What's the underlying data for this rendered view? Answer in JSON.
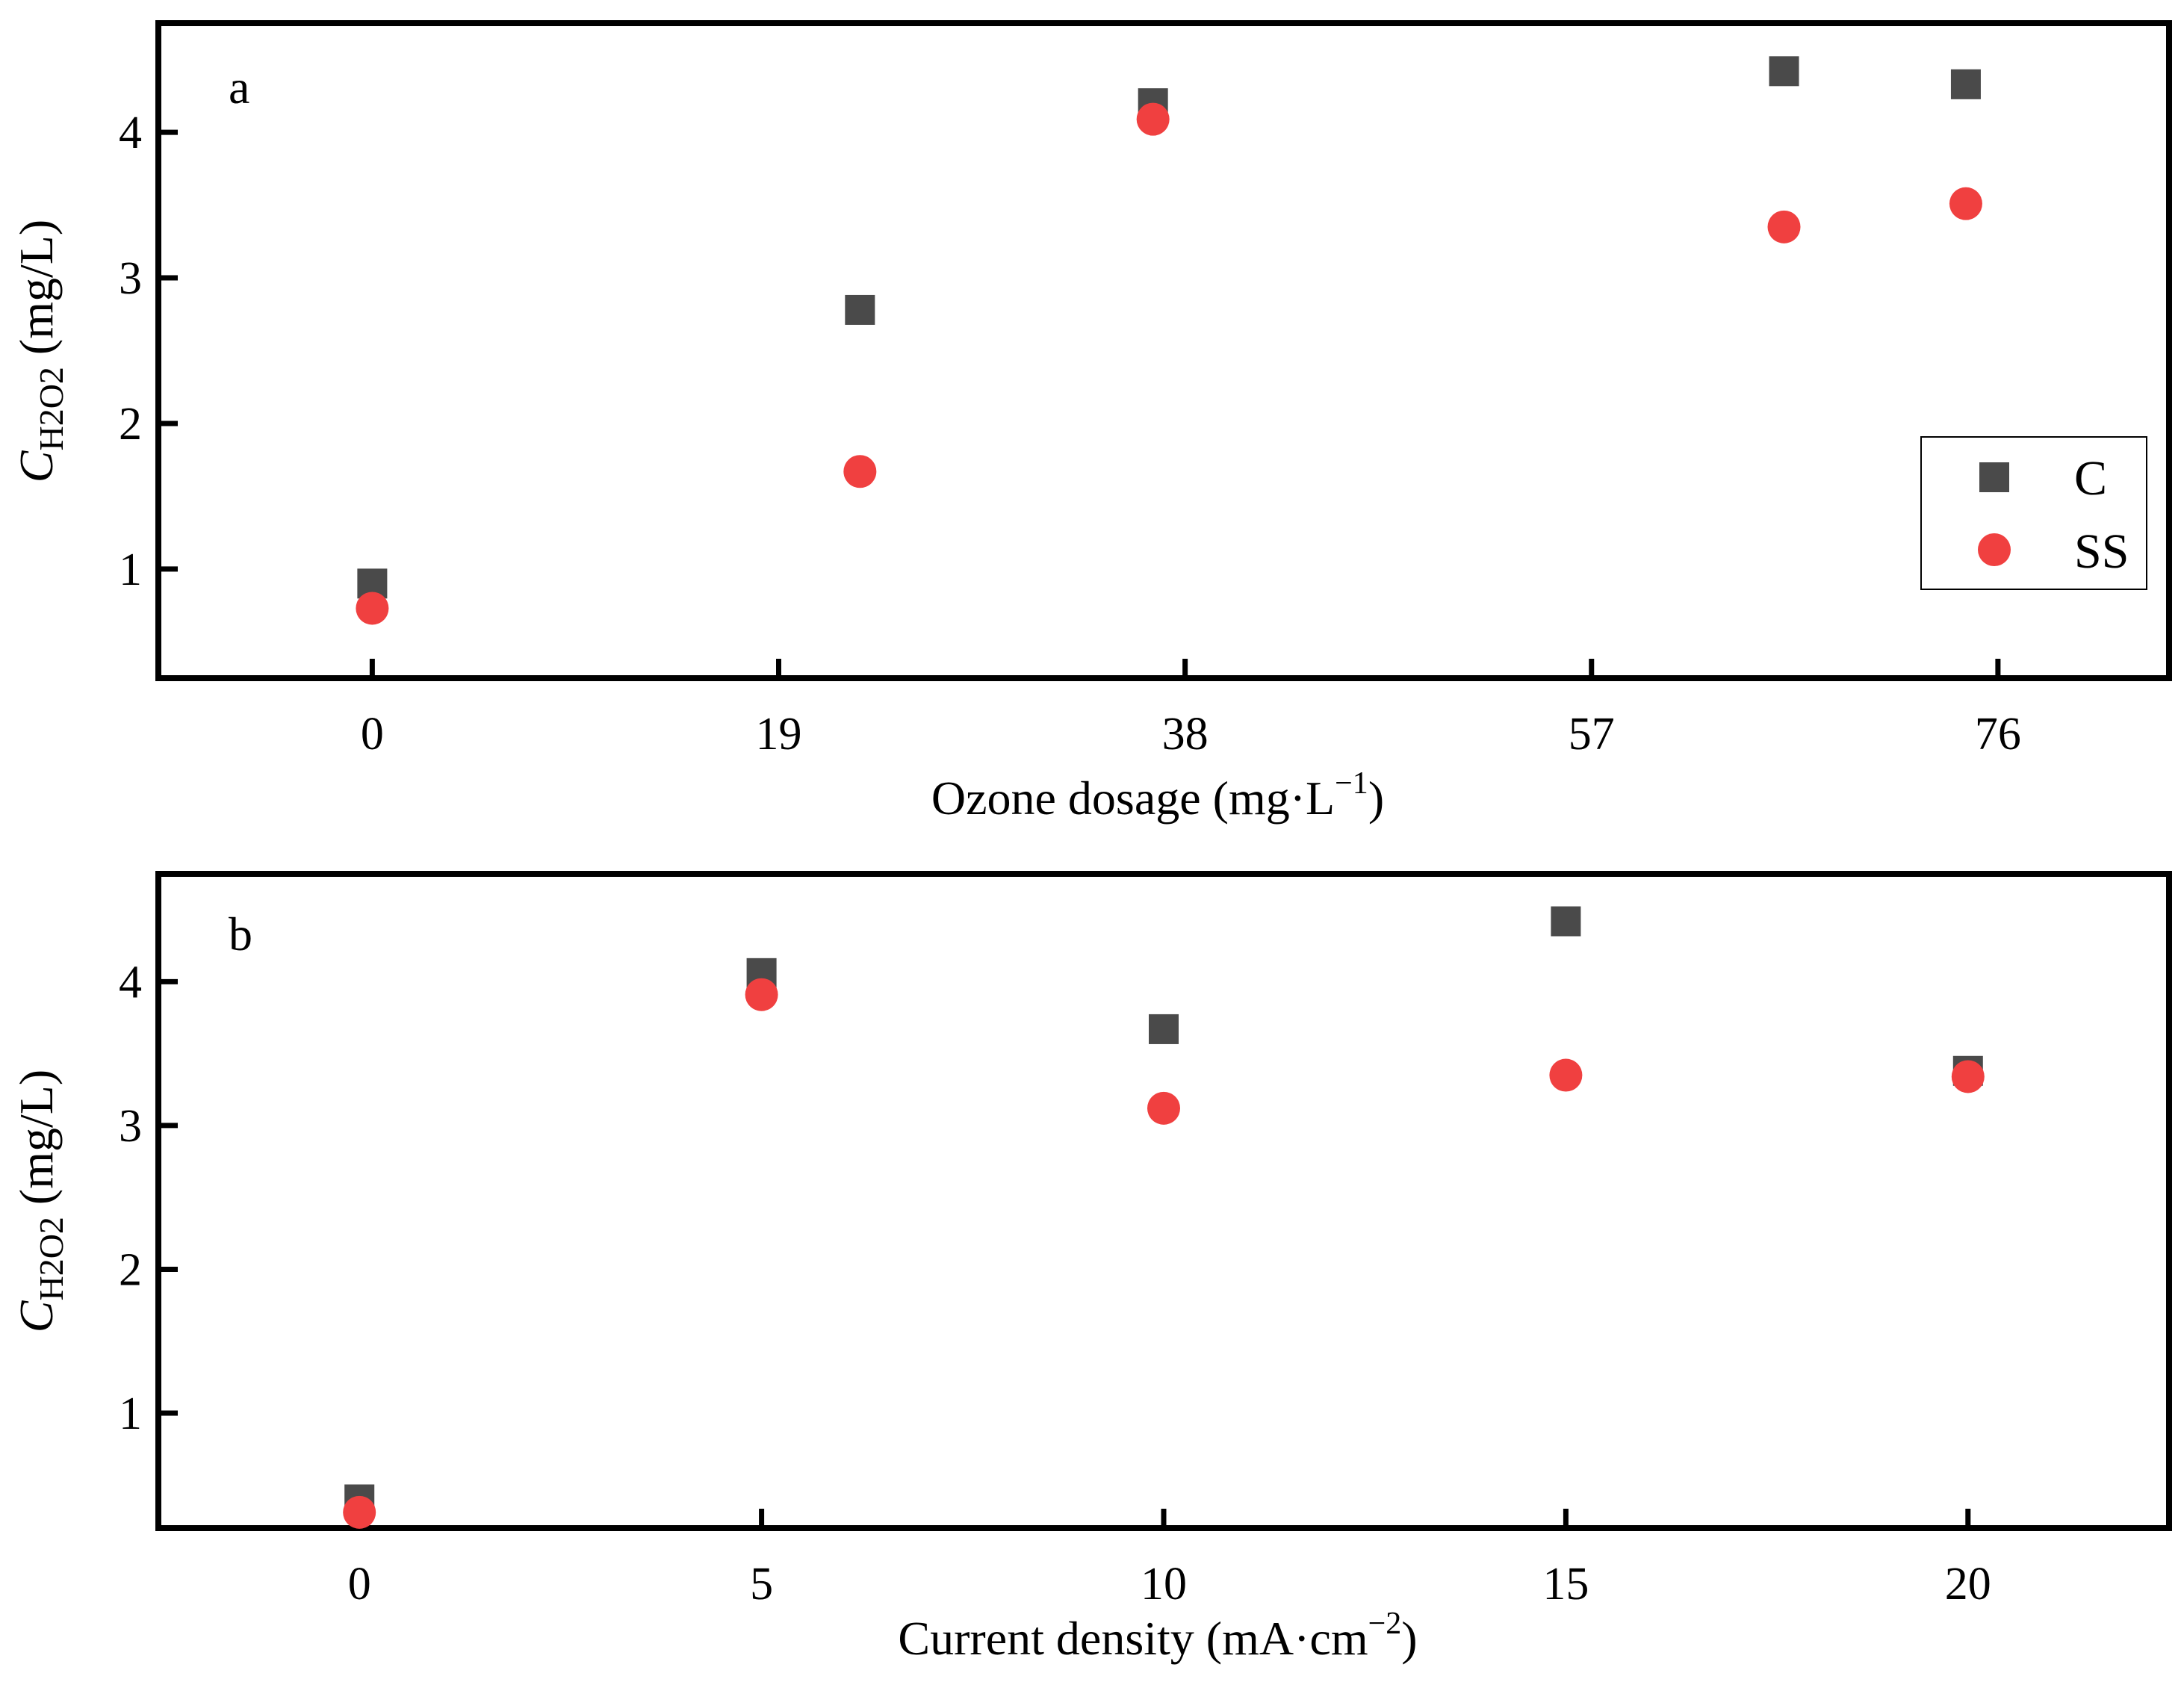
{
  "colors": {
    "C": "#4a4a4a",
    "SS": "#f04040",
    "axis": "#000000",
    "background": "#ffffff"
  },
  "legend": {
    "entries": [
      {
        "label": "C",
        "marker": "square"
      },
      {
        "label": "SS",
        "marker": "circle"
      }
    ]
  },
  "chart_data": [
    {
      "type": "scatter",
      "panel_label": "a",
      "xlabel": {
        "main": "Ozone dosage (mg·L",
        "sup": "−1",
        "close": ")"
      },
      "ylabel": {
        "main": "C",
        "sub": "H2O2",
        "unit": " (mg/L)"
      },
      "x_ticks": [
        0,
        19,
        38,
        57,
        76
      ],
      "x_tick_labels": [
        "0",
        "19",
        "38",
        "57",
        "76"
      ],
      "xlim": [
        -10,
        84
      ],
      "y_ticks": [
        1,
        2,
        3,
        4
      ],
      "y_tick_labels": [
        "1",
        "2",
        "3",
        "4"
      ],
      "ylim": [
        0.25,
        4.75
      ],
      "series": [
        {
          "name": "C",
          "x": [
            0,
            22.8,
            36.5,
            66,
            74.5
          ],
          "y": [
            0.9,
            2.78,
            4.2,
            4.42,
            4.33
          ]
        },
        {
          "name": "SS",
          "x": [
            0,
            22.8,
            36.5,
            66,
            74.5
          ],
          "y": [
            0.73,
            1.67,
            4.09,
            3.35,
            3.51
          ]
        }
      ]
    },
    {
      "type": "scatter",
      "panel_label": "b",
      "xlabel": {
        "main": "Current density (mA·cm",
        "sup": "−2",
        "close": ")"
      },
      "ylabel": {
        "main": "C",
        "sub": "H2O2",
        "unit": " (mg/L)"
      },
      "x_ticks": [
        0,
        5,
        10,
        15,
        20
      ],
      "x_tick_labels": [
        "0",
        "5",
        "10",
        "15",
        "20"
      ],
      "xlim": [
        -2.5,
        22.5
      ],
      "y_ticks": [
        1,
        2,
        3,
        4
      ],
      "y_tick_labels": [
        "1",
        "2",
        "3",
        "4"
      ],
      "ylim": [
        0.2,
        4.75
      ],
      "series": [
        {
          "name": "C",
          "x": [
            0,
            5,
            10,
            15,
            20
          ],
          "y": [
            0.4,
            4.06,
            3.67,
            4.42,
            3.38
          ]
        },
        {
          "name": "SS",
          "x": [
            0,
            5,
            10,
            15,
            20
          ],
          "y": [
            0.31,
            3.91,
            3.12,
            3.35,
            3.34
          ]
        }
      ]
    }
  ]
}
